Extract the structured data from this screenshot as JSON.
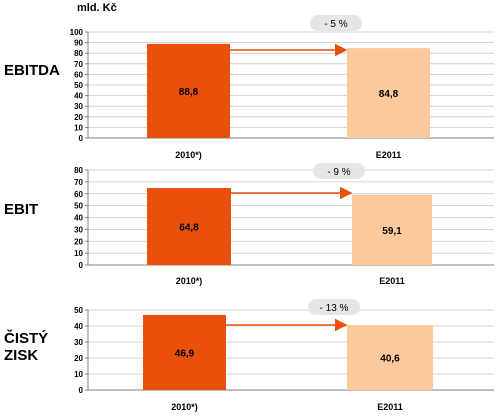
{
  "unit_label": "mld. Kč",
  "colors": {
    "bar_2010": "#e8500c",
    "bar_2011": "#fbc99b",
    "arrow": "#e8500c",
    "badge": "#e6e6e6",
    "axis": "#808080",
    "grid": "#c8c8c8"
  },
  "chart_data": [
    {
      "type": "bar",
      "title": "EBITDA",
      "categories": [
        "2010*)",
        "E2011"
      ],
      "values": [
        88.8,
        84.8
      ],
      "value_labels": [
        "88,8",
        "84,8"
      ],
      "change_label": "- 5 %",
      "ylim": [
        0,
        100
      ],
      "yticks": [
        "0",
        "10",
        "20",
        "30",
        "40",
        "50",
        "60",
        "70",
        "80",
        "90",
        "100"
      ],
      "grid": true
    },
    {
      "type": "bar",
      "title": "EBIT",
      "categories": [
        "2010*)",
        "E2011"
      ],
      "values": [
        64.8,
        59.1
      ],
      "value_labels": [
        "64,8",
        "59,1"
      ],
      "change_label": "- 9 %",
      "ylim": [
        0,
        80
      ],
      "yticks": [
        "0",
        "10",
        "20",
        "30",
        "40",
        "50",
        "60",
        "70",
        "80"
      ],
      "grid": true
    },
    {
      "type": "bar",
      "title_lines": [
        "ČISTÝ",
        "ZISK"
      ],
      "categories": [
        "2010*)",
        "E2011"
      ],
      "values": [
        46.9,
        40.6
      ],
      "value_labels": [
        "46,9",
        "40,6"
      ],
      "change_label": "- 13 %",
      "ylim": [
        0,
        50
      ],
      "yticks": [
        "0",
        "10",
        "20",
        "30",
        "40",
        "50"
      ],
      "grid": true
    }
  ]
}
